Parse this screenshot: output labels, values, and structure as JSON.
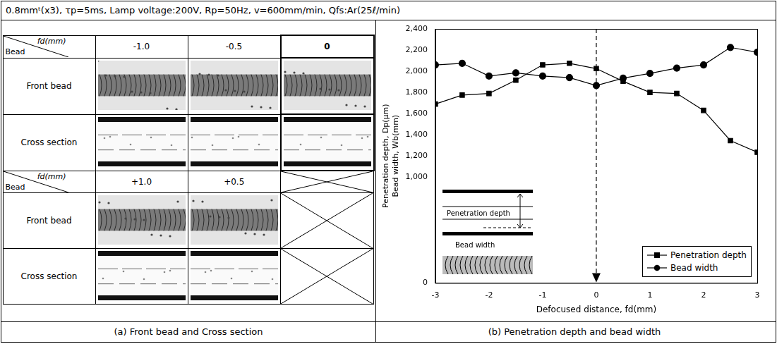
{
  "header": {
    "text": "0.8mmᵗ(x3), τp=5ms, Lamp voltage:200V, Rp=50Hz, v=600mm/min, Qfs:Ar(25ℓ/min)"
  },
  "panel_a": {
    "caption": "(a) Front bead and Cross section",
    "corner_labels": {
      "column": "fd(mm)",
      "row": "Bead"
    },
    "row_labels": [
      "Front bead",
      "Cross section"
    ],
    "groups": [
      {
        "columns": [
          "-1.0",
          "-0.5",
          "0"
        ]
      },
      {
        "columns": [
          "+1.0",
          "+0.5",
          null
        ]
      }
    ]
  },
  "chart_data": {
    "type": "line",
    "caption": "(b) Penetration depth and bead width",
    "x_label": "Defocused distance, fd(mm)",
    "y_label": [
      "Penetration depth, Dp(μm)",
      "Bead width, Wb(mm)"
    ],
    "x": [
      -3,
      -2.5,
      -2,
      -1.5,
      -1,
      -0.5,
      0,
      0.5,
      1,
      1.5,
      2,
      2.5,
      3
    ],
    "series": [
      {
        "name": "Penetration depth",
        "color": "#000000",
        "marker": "square",
        "line_style": "solid",
        "values": [
          1690,
          1775,
          1790,
          1915,
          2060,
          2075,
          2025,
          1905,
          1800,
          1790,
          1630,
          1345,
          1235
        ]
      },
      {
        "name": "Bead width",
        "color": "#000000",
        "marker": "circle",
        "line_style": "solid",
        "values": [
          2060,
          2075,
          1955,
          1985,
          1955,
          1940,
          1865,
          1935,
          1980,
          2030,
          2060,
          2225,
          2180
        ]
      }
    ],
    "xlim": [
      -3,
      3
    ],
    "xticks": [
      -3,
      -2,
      -1,
      0,
      1,
      2,
      3
    ],
    "ylim": [
      0,
      2400
    ],
    "yticks": [
      0,
      {
        "value": 1000,
        "label": "1,000"
      },
      {
        "value": 1200,
        "label": "1,200"
      },
      {
        "value": 1400,
        "label": "1,400"
      },
      {
        "value": 1600,
        "label": "1,600"
      },
      {
        "value": 1800,
        "label": "1,800"
      },
      {
        "value": 2000,
        "label": "2,000"
      },
      {
        "value": 2200,
        "label": "2,200"
      },
      {
        "value": 2400,
        "label": "2,400"
      }
    ],
    "grid": false,
    "legend": "lower right",
    "vertical_line": {
      "x": 0,
      "line_style": "dashed"
    },
    "inset": {
      "labels": [
        "Penetration depth",
        "Bead width"
      ]
    }
  }
}
